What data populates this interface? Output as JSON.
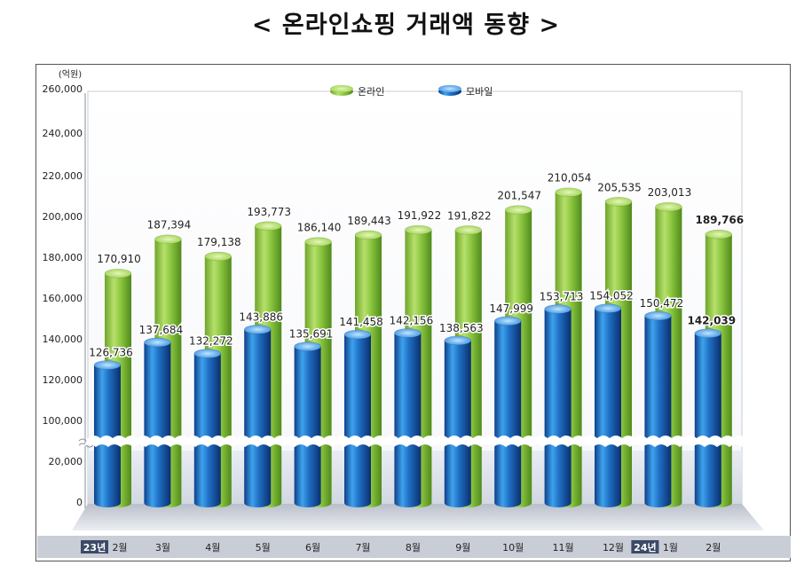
{
  "title": "< 온라인쇼핑 거래액 동향 >",
  "chart_data": {
    "type": "bar",
    "unit_label": "(억원)",
    "categories": [
      "2월",
      "3월",
      "4월",
      "5월",
      "6월",
      "7월",
      "8월",
      "9월",
      "10월",
      "11월",
      "12월",
      "1월",
      "2월"
    ],
    "year_badges": [
      {
        "index": 0,
        "text": "23년"
      },
      {
        "index": 11,
        "text": "24년"
      }
    ],
    "series": [
      {
        "name": "온라인",
        "color": "#8cc63f",
        "values": [
          170910,
          187394,
          179138,
          193773,
          186140,
          189443,
          191922,
          191822,
          201547,
          210054,
          205535,
          203013,
          189766
        ]
      },
      {
        "name": "모바일",
        "color": "#1f6fc4",
        "values": [
          126736,
          137684,
          132272,
          143886,
          135691,
          141458,
          142156,
          138563,
          147999,
          153713,
          154052,
          150472,
          142039
        ]
      }
    ],
    "value_labels": {
      "온라인": [
        "170,910",
        "187,394",
        "179,138",
        "193,773",
        "186,140",
        "189,443",
        "191,922",
        "191,822",
        "201,547",
        "210,054",
        "205,535",
        "203,013",
        "189,766"
      ],
      "모바일": [
        "126,736",
        "137,684",
        "132,272",
        "143,886",
        "135,691",
        "141,458",
        "142,156",
        "138,563",
        "147,999",
        "153,713",
        "154,052",
        "150,472",
        "142,039"
      ]
    },
    "y_ticks_upper": [
      "100,000",
      "120,000",
      "140,000",
      "160,000",
      "180,000",
      "200,000",
      "220,000",
      "240,000",
      "260,000"
    ],
    "y_ticks_lower": [
      "0",
      "20,000"
    ],
    "ylim": [
      0,
      260000
    ],
    "axis_break": [
      20000,
      100000
    ],
    "legend_position": "top-center",
    "bold_last_labels": true
  }
}
